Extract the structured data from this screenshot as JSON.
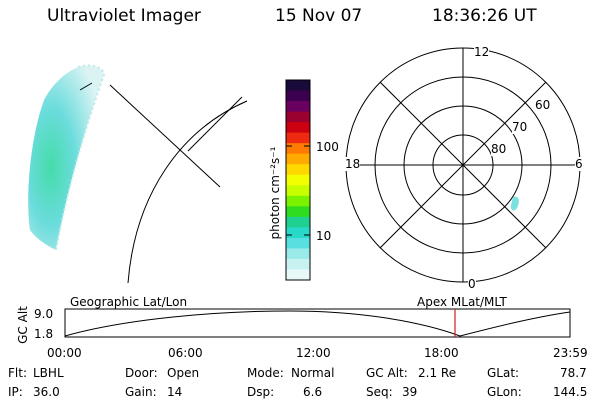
{
  "header": {
    "instrument": "Ultraviolet Imager",
    "date": "15 Nov 07",
    "time": "18:36:26 UT"
  },
  "colorbar": {
    "unit_label": "photon cm⁻²s⁻¹",
    "tick_labels": [
      "100",
      "10"
    ],
    "colors": [
      "#1a0a3a",
      "#3b0050",
      "#6a0060",
      "#9a0030",
      "#cc0010",
      "#ee2a10",
      "#ff7a00",
      "#ffaa00",
      "#ffd800",
      "#f2ff00",
      "#c8ff00",
      "#7af200",
      "#30dc20",
      "#20d090",
      "#28d8c8",
      "#58e0e0",
      "#9aeaea",
      "#c8f2f2",
      "#e8f8f8"
    ]
  },
  "polar_plot": {
    "lat_labels": [
      "60",
      "70",
      "80"
    ],
    "mlt_labels": {
      "top": "12",
      "left": "18",
      "right": "6",
      "bottom": "0"
    }
  },
  "altitude_panel": {
    "axis_label": "GC Alt",
    "left_title": "Geographic Lat/Lon",
    "right_title": "Apex MLat/MLT",
    "y_ticks": [
      "9.0",
      "1.8"
    ],
    "x_ticks": [
      "00:00",
      "06:00",
      "12:00",
      "18:00",
      "23:59"
    ],
    "marker_color": "#cc2222"
  },
  "status": {
    "flt_label": "Flt:",
    "flt_value": "LBHL",
    "ip_label": "IP:",
    "ip_value": "36.0",
    "door_label": "Door:",
    "door_value": "Open",
    "gain_label": "Gain:",
    "gain_value": "14",
    "mode_label": "Mode:",
    "mode_value": "Normal",
    "dsp_label": "Dsp:",
    "dsp_value": "6.6",
    "gcalt_label": "GC Alt:",
    "gcalt_value": "2.1 Re",
    "seq_label": "Seq:",
    "seq_value": "39",
    "glat_label": "GLat:",
    "glat_value": "78.7",
    "glon_label": "GLon:",
    "glon_value": "144.5"
  }
}
